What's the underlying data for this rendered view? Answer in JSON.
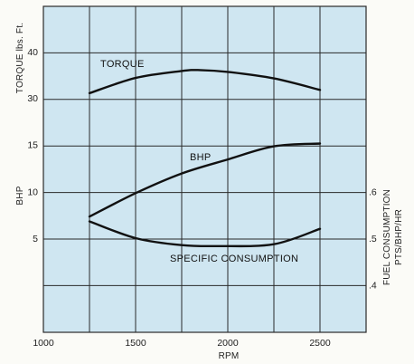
{
  "chart_data": {
    "type": "line",
    "xlabel": "RPM",
    "x_ticks": [
      "1000",
      "1500",
      "2000",
      "2500"
    ],
    "xlim": [
      1000,
      2500
    ],
    "grid": true,
    "colors": {
      "plot_bg": "#cfe6f1",
      "grid": "#2a2a2a",
      "curve": "#111111"
    },
    "torque_axis": {
      "label": "TORQUE lbs. Ft.",
      "ticks": [
        "40",
        "30"
      ],
      "range": [
        25,
        45
      ]
    },
    "bhp_axis": {
      "label": "BHP",
      "ticks": [
        "15",
        "10",
        "5"
      ],
      "range": [
        0,
        20
      ]
    },
    "fuel_axis": {
      "label_line1": "FUEL CONSUMPTION",
      "label_line2": "PTS/BHP/HR",
      "ticks": [
        ".6",
        ".5",
        ".4"
      ],
      "range": [
        0.3,
        0.7
      ]
    },
    "series": [
      {
        "name": "TORQUE",
        "axis": "torque",
        "x": [
          1250,
          1500,
          1750,
          1850,
          2000,
          2250,
          2500
        ],
        "y": [
          31.0,
          34.3,
          35.8,
          36.0,
          35.6,
          34.2,
          31.7
        ]
      },
      {
        "name": "BHP",
        "axis": "bhp",
        "x": [
          1250,
          1500,
          1750,
          2000,
          2250,
          2500
        ],
        "y": [
          7.3,
          9.8,
          11.9,
          13.4,
          14.8,
          15.1
        ]
      },
      {
        "name": "SPECIFIC CONSUMPTION",
        "axis": "fuel",
        "x": [
          1250,
          1500,
          1750,
          1950,
          2250,
          2500
        ],
        "y": [
          0.536,
          0.5,
          0.485,
          0.483,
          0.487,
          0.52
        ]
      }
    ]
  }
}
